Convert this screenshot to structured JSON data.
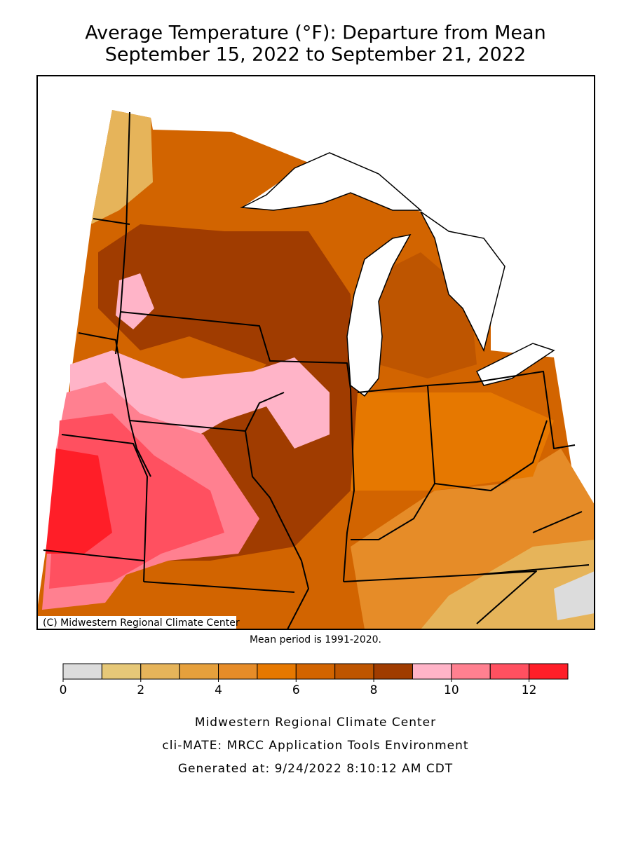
{
  "map": {
    "title": [
      "Average Temperature (°F): Departure from Mean",
      "September 15, 2022 to September 21, 2022"
    ],
    "copyright": "(C) Midwestern Regional Climate Center",
    "mean_period": "Mean period is 1991-2020.",
    "colorbar": {
      "range": [
        0,
        13
      ],
      "colors": [
        "#dcdcdc",
        "#e6c878",
        "#e6b45a",
        "#e6a03c",
        "#e68c28",
        "#e67800",
        "#d26400",
        "#be5500",
        "#a03c00",
        "#ffb4c8",
        "#ff8090",
        "#ff5060",
        "#ff1e28"
      ],
      "ticks": [
        0,
        2,
        4,
        6,
        8,
        10,
        12
      ]
    },
    "footer": [
      "Midwestern Regional Climate Center",
      "cli-MATE: MRCC Application Tools Environment",
      "Generated at: 9/24/2022 8:10:12 AM CDT"
    ]
  }
}
